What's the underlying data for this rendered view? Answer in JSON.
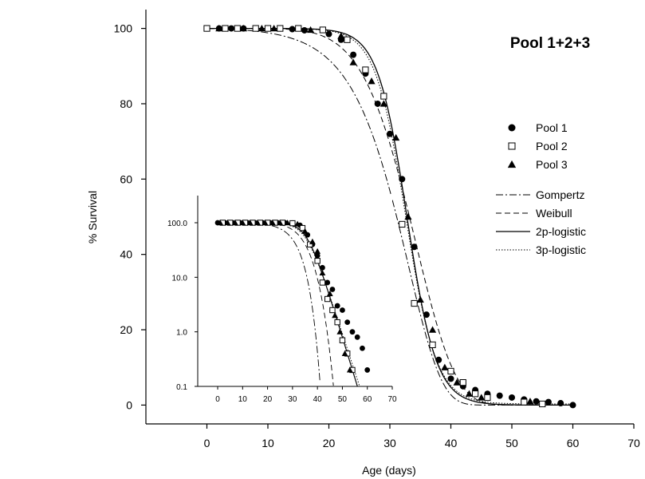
{
  "chart_data": {
    "type": "scatter",
    "title": "Pool 1+2+3",
    "xlabel": "Age (days)",
    "ylabel": "% Survival",
    "xlim": [
      -10,
      70
    ],
    "ylim": [
      -5,
      105
    ],
    "xticks": [
      "0",
      "10",
      "20",
      "30",
      "40",
      "50",
      "60",
      "70"
    ],
    "yticks": [
      "0",
      "20",
      "40",
      "60",
      "80",
      "100"
    ],
    "grid": false,
    "legend_position": "right",
    "series": [
      {
        "name": "Pool 1",
        "marker": "filled-circle",
        "points": [
          [
            0,
            100
          ],
          [
            2,
            100
          ],
          [
            4,
            100
          ],
          [
            6,
            100
          ],
          [
            8,
            100
          ],
          [
            10,
            100
          ],
          [
            12,
            100
          ],
          [
            14,
            99.8
          ],
          [
            16,
            99.5
          ],
          [
            20,
            98.5
          ],
          [
            22,
            97
          ],
          [
            24,
            93
          ],
          [
            26,
            88
          ],
          [
            28,
            80
          ],
          [
            30,
            72
          ],
          [
            32,
            60
          ],
          [
            34,
            42
          ],
          [
            36,
            24
          ],
          [
            38,
            12
          ],
          [
            40,
            7
          ],
          [
            42,
            5
          ],
          [
            44,
            4
          ],
          [
            46,
            3
          ],
          [
            48,
            2.5
          ],
          [
            50,
            2
          ],
          [
            52,
            1.5
          ],
          [
            54,
            1
          ],
          [
            56,
            0.8
          ],
          [
            58,
            0.5
          ],
          [
            60,
            0
          ]
        ]
      },
      {
        "name": "Pool 2",
        "marker": "open-square",
        "points": [
          [
            0,
            100
          ],
          [
            3,
            100
          ],
          [
            5,
            100
          ],
          [
            8,
            100
          ],
          [
            10,
            100
          ],
          [
            12,
            100
          ],
          [
            15,
            100
          ],
          [
            19,
            99.6
          ],
          [
            23,
            97
          ],
          [
            26,
            89
          ],
          [
            29,
            82
          ],
          [
            32,
            48
          ],
          [
            34,
            27
          ],
          [
            37,
            16
          ],
          [
            40,
            9
          ],
          [
            42,
            6
          ],
          [
            44,
            3
          ],
          [
            46,
            2
          ],
          [
            52,
            0.8
          ],
          [
            55,
            0.3
          ]
        ]
      },
      {
        "name": "Pool 3",
        "marker": "filled-triangle",
        "points": [
          [
            2,
            100
          ],
          [
            6,
            100
          ],
          [
            9,
            100
          ],
          [
            11,
            100
          ],
          [
            17,
            99.6
          ],
          [
            22,
            98
          ],
          [
            24,
            91
          ],
          [
            27,
            86
          ],
          [
            29,
            80
          ],
          [
            31,
            71
          ],
          [
            33,
            50
          ],
          [
            35,
            28
          ],
          [
            37,
            20
          ],
          [
            39,
            10
          ],
          [
            41,
            6
          ],
          [
            43,
            3
          ],
          [
            45,
            2
          ],
          [
            53,
            1
          ]
        ]
      }
    ],
    "fits": [
      {
        "name": "Gompertz",
        "style": "dash-dot"
      },
      {
        "name": "Weibull",
        "style": "dashed"
      },
      {
        "name": "2p-logistic",
        "style": "solid"
      },
      {
        "name": "3p-logistic",
        "style": "dotted"
      }
    ],
    "inset": {
      "scale": "log",
      "xlim": [
        -8,
        70
      ],
      "ylim": [
        0.1,
        100
      ],
      "xticks": [
        "0",
        "10",
        "20",
        "30",
        "40",
        "50",
        "60",
        "70"
      ],
      "yticks": [
        "0.1",
        "1.0",
        "10.0",
        "100.0"
      ],
      "series": [
        {
          "name": "Pool 1",
          "points": [
            [
              0,
              100
            ],
            [
              3,
              100
            ],
            [
              6,
              100
            ],
            [
              9,
              100
            ],
            [
              12,
              100
            ],
            [
              15,
              100
            ],
            [
              18,
              100
            ],
            [
              21,
              100
            ],
            [
              24,
              100
            ],
            [
              27,
              100
            ],
            [
              30,
              99
            ],
            [
              33,
              90
            ],
            [
              36,
              60
            ],
            [
              38,
              40
            ],
            [
              40,
              25
            ],
            [
              42,
              15
            ],
            [
              44,
              8
            ],
            [
              46,
              6
            ],
            [
              48,
              3
            ],
            [
              50,
              2.5
            ],
            [
              52,
              1.5
            ],
            [
              54,
              1
            ],
            [
              56,
              0.8
            ],
            [
              58,
              0.5
            ],
            [
              60,
              0.2
            ]
          ]
        },
        {
          "name": "Pool 2",
          "points": [
            [
              2,
              100
            ],
            [
              5,
              100
            ],
            [
              8,
              100
            ],
            [
              11,
              100
            ],
            [
              14,
              100
            ],
            [
              17,
              100
            ],
            [
              20,
              100
            ],
            [
              23,
              100
            ],
            [
              26,
              100
            ],
            [
              30,
              98
            ],
            [
              34,
              80
            ],
            [
              37,
              40
            ],
            [
              40,
              20
            ],
            [
              42,
              8
            ],
            [
              44,
              4
            ],
            [
              46,
              2.5
            ],
            [
              48,
              1.5
            ],
            [
              50,
              0.7
            ],
            [
              52,
              0.4
            ],
            [
              54,
              0.2
            ]
          ]
        },
        {
          "name": "Pool 3",
          "points": [
            [
              1,
              100
            ],
            [
              4,
              100
            ],
            [
              7,
              100
            ],
            [
              10,
              100
            ],
            [
              13,
              100
            ],
            [
              16,
              100
            ],
            [
              19,
              100
            ],
            [
              22,
              100
            ],
            [
              25,
              100
            ],
            [
              28,
              100
            ],
            [
              32,
              95
            ],
            [
              35,
              70
            ],
            [
              38,
              45
            ],
            [
              40,
              30
            ],
            [
              42,
              12
            ],
            [
              45,
              5
            ],
            [
              47,
              2
            ],
            [
              49,
              1
            ],
            [
              51,
              0.4
            ],
            [
              53,
              0.2
            ]
          ]
        }
      ]
    }
  }
}
